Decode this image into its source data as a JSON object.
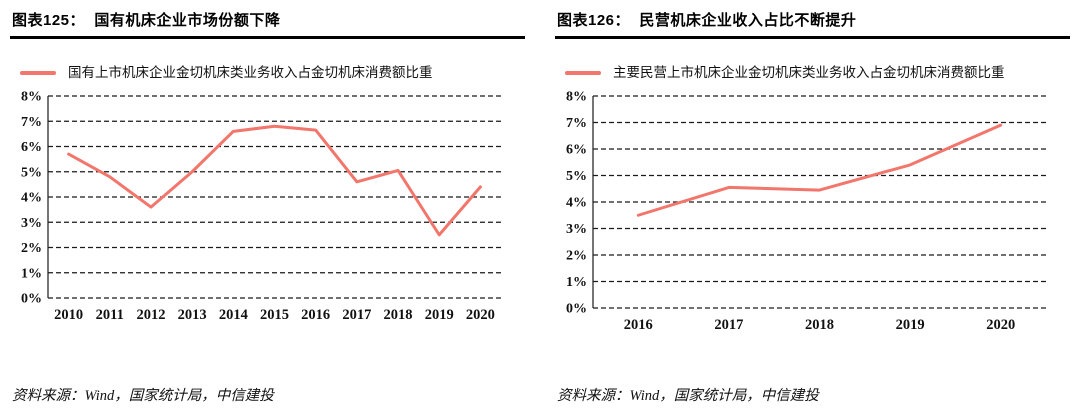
{
  "accent_color": "#f2766b",
  "grid_color": "#1a1a1a",
  "chart_data": [
    {
      "type": "line",
      "title": "图表125：  国有机床企业市场份额下降",
      "legend": "国有上市机床企业金切机床类业务收入占金切机床消费额比重",
      "x": [
        "2010",
        "2011",
        "2012",
        "2013",
        "2014",
        "2015",
        "2016",
        "2017",
        "2018",
        "2019",
        "2020"
      ],
      "series": [
        {
          "name": "国有上市机床企业金切机床类业务收入占金切机床消费额比重",
          "values": [
            5.7,
            4.8,
            3.6,
            5.0,
            6.6,
            6.8,
            6.65,
            4.6,
            5.05,
            2.5,
            4.4
          ]
        }
      ],
      "xlabel": "",
      "ylabel": "",
      "ylim": [
        0,
        8
      ],
      "ytick_step": 1,
      "ytick_suffix": "%",
      "grid": "dashed-horizontal",
      "legend_position": "top-left",
      "line_color": "#f2766b",
      "source": "资料来源：Wind，国家统计局，中信建投"
    },
    {
      "type": "line",
      "title": "图表126：  民营机床企业收入占比不断提升",
      "legend": "主要民营上市机床企业金切机床类业务收入占金切机床消费额比重",
      "x": [
        "2016",
        "2017",
        "2018",
        "2019",
        "2020"
      ],
      "series": [
        {
          "name": "主要民营上市机床企业金切机床类业务收入占金切机床消费额比重",
          "values": [
            3.5,
            4.55,
            4.45,
            5.4,
            6.9
          ]
        }
      ],
      "xlabel": "",
      "ylabel": "",
      "ylim": [
        0,
        8
      ],
      "ytick_step": 1,
      "ytick_suffix": "%",
      "grid": "dashed-horizontal",
      "legend_position": "top-left",
      "line_color": "#f2766b",
      "source": "资料来源：Wind，国家统计局，中信建投"
    }
  ]
}
